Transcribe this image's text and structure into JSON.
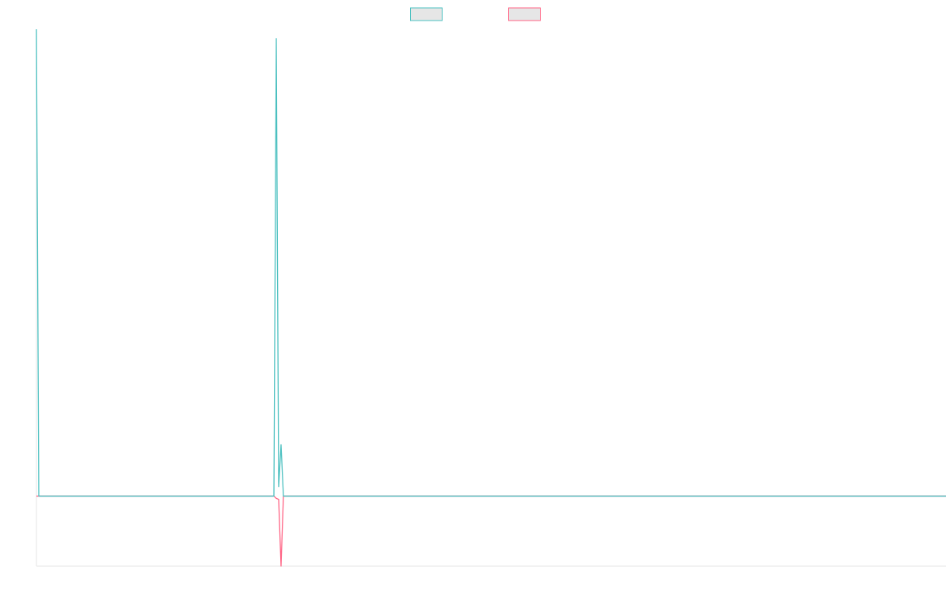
{
  "chart_data": {
    "type": "line",
    "x": [
      0,
      1,
      100,
      101,
      102,
      103,
      104,
      383
    ],
    "series": [
      {
        "color": "#4bc0c0",
        "values": [
          100,
          0,
          0,
          98,
          2,
          11,
          0,
          0
        ]
      },
      {
        "color": "#ff6384",
        "values": [
          0,
          0,
          0,
          -0.5,
          -0.7,
          -15,
          0,
          0
        ]
      }
    ],
    "xlim": [
      0,
      383
    ],
    "ylim": [
      -15,
      100
    ],
    "legend": "top"
  }
}
